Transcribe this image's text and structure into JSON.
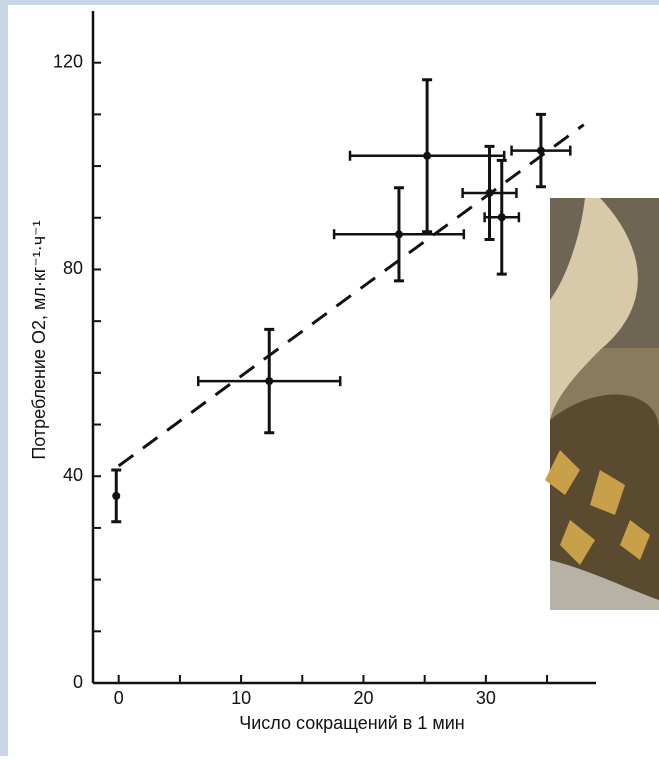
{
  "chart_data": {
    "type": "scatter",
    "xlabel": "Число сокращений в 1 мин",
    "ylabel": "Потребление O2, мл·кг⁻¹·ч⁻¹",
    "x": [
      -0.2,
      12.3,
      22.9,
      25.2,
      30.3,
      31.3,
      34.5
    ],
    "values": [
      36.2,
      58.4,
      86.8,
      102,
      94.8,
      90.1,
      103
    ],
    "xerr": [
      null,
      5.8,
      5.3,
      6.3,
      2.2,
      1.4,
      2.4
    ],
    "yerr": [
      5,
      10,
      9,
      14.7,
      9,
      11,
      7
    ],
    "color": "#111111",
    "trend": {
      "x": [
        0,
        38
      ],
      "y": [
        42,
        108
      ]
    },
    "xlim": [
      -2.1,
      39
    ],
    "ylim": [
      0,
      130
    ],
    "xticks": [
      0,
      10,
      20,
      30
    ],
    "yticks": [
      0,
      40,
      80,
      120
    ],
    "xminor_ticks": [
      5,
      15,
      25,
      35
    ],
    "yminor_ticks": [
      10,
      20,
      30,
      50,
      60,
      70,
      90,
      100,
      110
    ]
  }
}
